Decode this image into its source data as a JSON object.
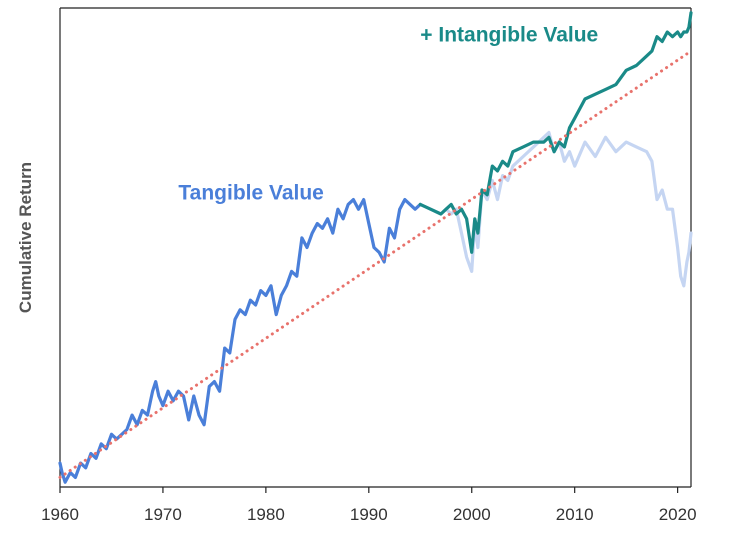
{
  "chart_data": {
    "type": "line",
    "title": "",
    "xlabel": "",
    "ylabel": "Cumulative Return",
    "xlim": [
      1960,
      2021.3
    ],
    "ylim": [
      0,
      100
    ],
    "y_tick_labels": false,
    "grid": false,
    "x_ticks": [
      "1960",
      "1970",
      "1980",
      "1990",
      "2000",
      "2010",
      "2020"
    ],
    "annotations": [
      {
        "text": "Tangible Value",
        "color": "#4a7fd9",
        "x": 1971.5,
        "y": 60
      },
      {
        "text": "+ Intangible Value",
        "color": "#1a8a88",
        "x": 1995,
        "y": 93
      }
    ],
    "series": [
      {
        "name": "Tangible Value",
        "color": "#4a7fd9",
        "x": [
          1960.0,
          1960.2,
          1960.5,
          1961,
          1961.5,
          1962,
          1962.5,
          1963,
          1963.5,
          1964,
          1964.5,
          1965,
          1965.5,
          1966,
          1966.5,
          1967,
          1967.5,
          1968,
          1968.5,
          1969,
          1969.3,
          1969.6,
          1970,
          1970.5,
          1971,
          1971.5,
          1972,
          1972.5,
          1973,
          1973.5,
          1974,
          1974.5,
          1975,
          1975.5,
          1976,
          1976.5,
          1977,
          1977.5,
          1978,
          1978.5,
          1979,
          1979.5,
          1980,
          1980.5,
          1981,
          1981.5,
          1982,
          1982.5,
          1983,
          1983.5,
          1984,
          1984.5,
          1985,
          1985.5,
          1986,
          1986.5,
          1987,
          1987.5,
          1988,
          1988.5,
          1989,
          1989.5,
          1990,
          1990.5,
          1991,
          1991.5,
          1992,
          1992.5,
          1993,
          1993.5,
          1994,
          1994.5,
          1995
        ],
        "y": [
          5,
          3,
          1,
          3,
          2,
          5,
          4,
          7,
          6,
          9,
          8,
          11,
          10,
          11,
          12,
          15,
          13,
          16,
          15,
          20,
          22,
          19,
          17,
          20,
          18,
          20,
          19,
          14,
          19,
          15,
          13,
          21,
          22,
          20,
          29,
          28,
          35,
          37,
          36,
          39,
          38,
          41,
          40,
          42,
          36,
          40,
          42,
          45,
          44,
          52,
          50,
          53,
          55,
          54,
          56,
          53,
          58,
          56,
          59,
          60,
          58,
          60,
          55,
          50,
          49,
          47,
          54,
          52,
          58,
          60,
          59,
          58,
          59
        ]
      },
      {
        "name": "",
        "color": "#c5d5f2",
        "x": [
          1995,
          1996,
          1997,
          1997.5,
          1998,
          1998.5,
          1999,
          1999.5,
          2000,
          2000.3,
          2000.6,
          2001,
          2001.5,
          2002,
          2002.5,
          2003,
          2003.5,
          2004,
          2005,
          2006,
          2007,
          2007.5,
          2008,
          2008.5,
          2009,
          2009.5,
          2010,
          2011,
          2012,
          2013,
          2014,
          2015,
          2016,
          2017,
          2017.5,
          2018,
          2018.5,
          2019,
          2019.5,
          2020,
          2020.3,
          2020.6,
          2020.9,
          2021.1,
          2021.3
        ],
        "y": [
          59,
          58,
          57,
          58,
          57,
          58,
          53,
          48,
          45,
          55,
          50,
          62,
          60,
          64,
          60,
          65,
          64,
          67,
          69,
          71,
          73,
          74,
          70,
          72,
          68,
          70,
          67,
          72,
          69,
          73,
          70,
          72,
          71,
          70,
          68,
          60,
          62,
          58,
          58,
          50,
          44,
          42,
          47,
          49,
          53
        ]
      },
      {
        "name": "+ Intangible Value",
        "color": "#1a8a88",
        "x": [
          1995,
          1996,
          1997,
          1997.5,
          1998,
          1998.5,
          1999,
          1999.5,
          2000,
          2000.3,
          2000.6,
          2001,
          2001.5,
          2002,
          2002.5,
          2003,
          2003.5,
          2004,
          2005,
          2006,
          2007,
          2007.5,
          2008,
          2008.5,
          2009,
          2009.5,
          2010,
          2011,
          2012,
          2013,
          2014,
          2015,
          2016,
          2017,
          2017.5,
          2018,
          2018.5,
          2019,
          2019.5,
          2020,
          2020.3,
          2020.6,
          2020.9,
          2021.1,
          2021.3
        ],
        "y": [
          59,
          58,
          57,
          58,
          59,
          57,
          58,
          56,
          49,
          56,
          53,
          62,
          61,
          67,
          66,
          68,
          67,
          70,
          71,
          72,
          72,
          73,
          70,
          72,
          71,
          75,
          77,
          81,
          82,
          83,
          84,
          87,
          88,
          90,
          91,
          94,
          93,
          95,
          94,
          95,
          94,
          95,
          95,
          96,
          99
        ]
      },
      {
        "name": "",
        "color": "#e8726c",
        "style": "dotted",
        "x": [
          1960,
          2021.3
        ],
        "y": [
          2,
          91
        ]
      }
    ]
  }
}
